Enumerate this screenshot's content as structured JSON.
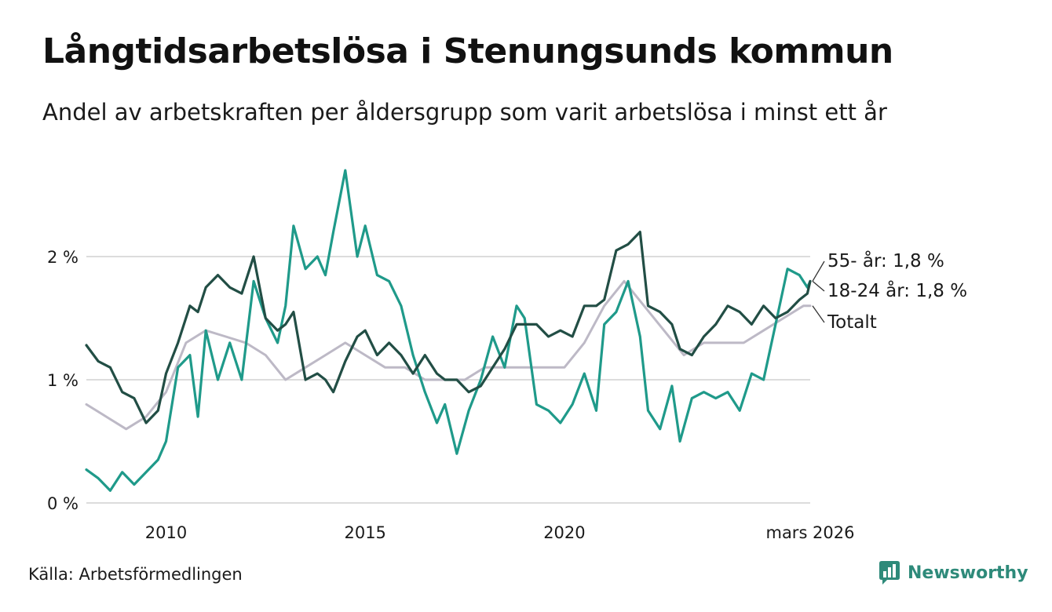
{
  "title": "Långtidsarbetslösa i Stenungsunds kommun",
  "subtitle": "Andel av arbetskraften per åldersgrupp som varit arbetslösa i minst ett år",
  "source": "Källa: Arbetsförmedlingen",
  "brand": "Newsworthy",
  "chart_data": {
    "type": "line",
    "title": "Långtidsarbetslösa i Stenungsunds kommun",
    "subtitle": "Andel av arbetskraften per åldersgrupp som varit arbetslösa i minst ett år",
    "xlabel": "",
    "ylabel": "",
    "xlim": [
      2008.0,
      2026.17
    ],
    "ylim": [
      0,
      3.0
    ],
    "grid": true,
    "yticks": [
      {
        "value": 0,
        "label": "0 %"
      },
      {
        "value": 1,
        "label": "1 %"
      },
      {
        "value": 2,
        "label": "2 %"
      }
    ],
    "xticks": [
      {
        "value": 2010,
        "label": "2010"
      },
      {
        "value": 2015,
        "label": "2015"
      },
      {
        "value": 2020,
        "label": "2020"
      },
      {
        "value": 2026.17,
        "label": "mars 2026"
      }
    ],
    "series": [
      {
        "name": "Totalt",
        "label": "Totalt",
        "color": "#bdb9c6",
        "x": [
          2008.0,
          2008.5,
          2009.0,
          2009.5,
          2010.0,
          2010.5,
          2011.0,
          2011.5,
          2012.0,
          2012.5,
          2013.0,
          2013.5,
          2014.0,
          2014.5,
          2015.0,
          2015.5,
          2016.0,
          2016.5,
          2017.0,
          2017.5,
          2018.0,
          2018.5,
          2019.0,
          2019.5,
          2020.0,
          2020.5,
          2021.0,
          2021.5,
          2022.0,
          2022.5,
          2023.0,
          2023.5,
          2024.0,
          2024.5,
          2025.0,
          2025.5,
          2026.0,
          2026.17
        ],
        "y": [
          0.8,
          0.7,
          0.6,
          0.7,
          0.9,
          1.3,
          1.4,
          1.35,
          1.3,
          1.2,
          1.0,
          1.1,
          1.2,
          1.3,
          1.2,
          1.1,
          1.1,
          1.0,
          1.0,
          1.0,
          1.1,
          1.1,
          1.1,
          1.1,
          1.1,
          1.3,
          1.6,
          1.8,
          1.6,
          1.4,
          1.2,
          1.3,
          1.3,
          1.3,
          1.4,
          1.5,
          1.6,
          1.6
        ]
      },
      {
        "name": "18-24 år",
        "label": "18-24 år: 1,8 %",
        "color": "#1f9a8a",
        "x": [
          2008.0,
          2008.3,
          2008.6,
          2008.9,
          2009.2,
          2009.5,
          2009.8,
          2010.0,
          2010.3,
          2010.6,
          2010.8,
          2011.0,
          2011.3,
          2011.6,
          2011.9,
          2012.2,
          2012.5,
          2012.8,
          2013.0,
          2013.2,
          2013.5,
          2013.8,
          2014.0,
          2014.2,
          2014.5,
          2014.8,
          2015.0,
          2015.3,
          2015.6,
          2015.9,
          2016.2,
          2016.5,
          2016.8,
          2017.0,
          2017.3,
          2017.6,
          2017.9,
          2018.2,
          2018.5,
          2018.8,
          2019.0,
          2019.3,
          2019.6,
          2019.9,
          2020.2,
          2020.5,
          2020.8,
          2021.0,
          2021.3,
          2021.6,
          2021.9,
          2022.1,
          2022.4,
          2022.7,
          2022.9,
          2023.2,
          2023.5,
          2023.8,
          2024.1,
          2024.4,
          2024.7,
          2025.0,
          2025.3,
          2025.6,
          2025.9,
          2026.1,
          2026.17
        ],
        "y": [
          0.27,
          0.2,
          0.1,
          0.25,
          0.15,
          0.25,
          0.35,
          0.5,
          1.1,
          1.2,
          0.7,
          1.4,
          1.0,
          1.3,
          1.0,
          1.8,
          1.5,
          1.3,
          1.6,
          2.25,
          1.9,
          2.0,
          1.85,
          2.2,
          2.7,
          2.0,
          2.25,
          1.85,
          1.8,
          1.6,
          1.2,
          0.9,
          0.65,
          0.8,
          0.4,
          0.75,
          1.0,
          1.35,
          1.1,
          1.6,
          1.5,
          0.8,
          0.75,
          0.65,
          0.8,
          1.05,
          0.75,
          1.45,
          1.55,
          1.8,
          1.35,
          0.75,
          0.6,
          0.95,
          0.5,
          0.85,
          0.9,
          0.85,
          0.9,
          0.75,
          1.05,
          1.0,
          1.45,
          1.9,
          1.85,
          1.75,
          1.8
        ]
      },
      {
        "name": "55- år",
        "label": "55- år: 1,8 %",
        "color": "#224e45",
        "x": [
          2008.0,
          2008.3,
          2008.6,
          2008.9,
          2009.2,
          2009.5,
          2009.8,
          2010.0,
          2010.3,
          2010.6,
          2010.8,
          2011.0,
          2011.3,
          2011.6,
          2011.9,
          2012.2,
          2012.5,
          2012.8,
          2013.0,
          2013.2,
          2013.5,
          2013.8,
          2014.0,
          2014.2,
          2014.5,
          2014.8,
          2015.0,
          2015.3,
          2015.6,
          2015.9,
          2016.2,
          2016.5,
          2016.8,
          2017.0,
          2017.3,
          2017.6,
          2017.9,
          2018.2,
          2018.5,
          2018.8,
          2019.0,
          2019.3,
          2019.6,
          2019.9,
          2020.2,
          2020.5,
          2020.8,
          2021.0,
          2021.3,
          2021.6,
          2021.9,
          2022.1,
          2022.4,
          2022.7,
          2022.9,
          2023.2,
          2023.5,
          2023.8,
          2024.1,
          2024.4,
          2024.7,
          2025.0,
          2025.3,
          2025.6,
          2025.9,
          2026.1,
          2026.17
        ],
        "y": [
          1.28,
          1.15,
          1.1,
          0.9,
          0.85,
          0.65,
          0.75,
          1.05,
          1.3,
          1.6,
          1.55,
          1.75,
          1.85,
          1.75,
          1.7,
          2.0,
          1.5,
          1.4,
          1.45,
          1.55,
          1.0,
          1.05,
          1.0,
          0.9,
          1.15,
          1.35,
          1.4,
          1.2,
          1.3,
          1.2,
          1.05,
          1.2,
          1.05,
          1.0,
          1.0,
          0.9,
          0.95,
          1.1,
          1.25,
          1.45,
          1.45,
          1.45,
          1.35,
          1.4,
          1.35,
          1.6,
          1.6,
          1.65,
          2.05,
          2.1,
          2.2,
          1.6,
          1.55,
          1.45,
          1.25,
          1.2,
          1.35,
          1.45,
          1.6,
          1.55,
          1.45,
          1.6,
          1.5,
          1.55,
          1.65,
          1.7,
          1.8
        ]
      }
    ]
  }
}
